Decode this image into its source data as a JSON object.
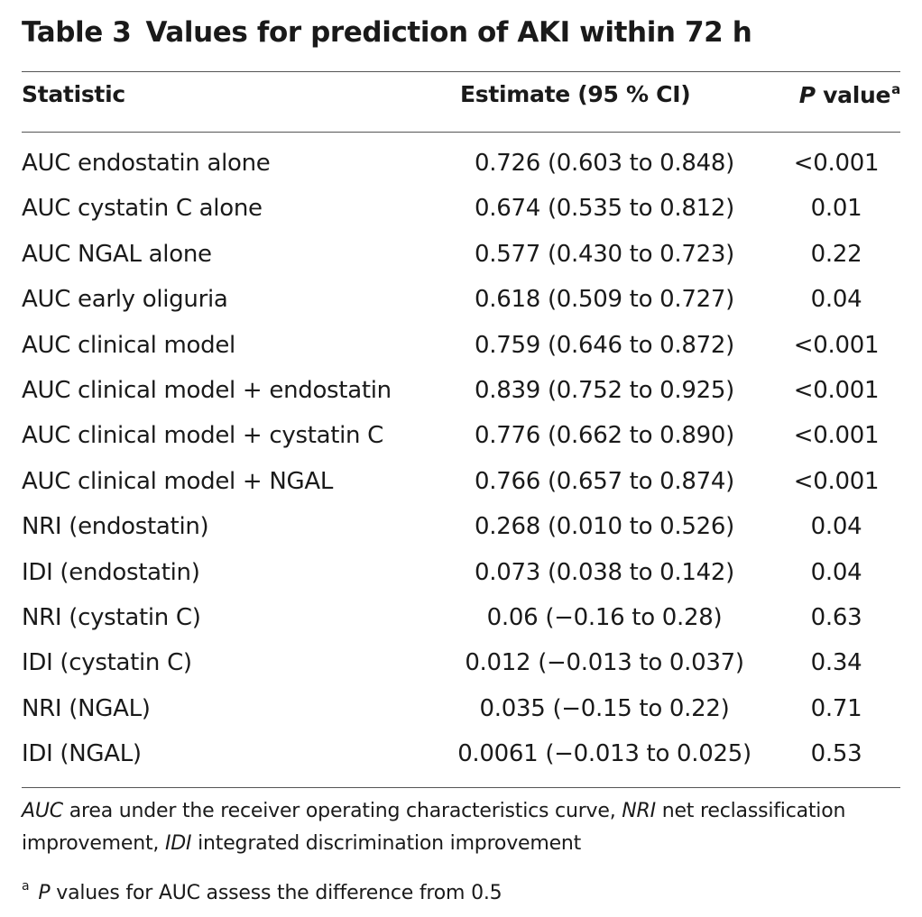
{
  "title": {
    "label": "Table 3",
    "text": "Values for prediction of AKI within 72 h"
  },
  "columns": {
    "statistic": "Statistic",
    "estimate": "Estimate (95 % CI)",
    "p_italic": "P",
    "p_rest": " value",
    "p_sup": "a"
  },
  "rows": [
    {
      "statistic": "AUC endostatin alone",
      "estimate": "0.726 (0.603 to 0.848)",
      "p": "<0.001"
    },
    {
      "statistic": "AUC cystatin C alone",
      "estimate": "0.674 (0.535 to 0.812)",
      "p": "0.01"
    },
    {
      "statistic": "AUC NGAL alone",
      "estimate": "0.577 (0.430 to 0.723)",
      "p": "0.22"
    },
    {
      "statistic": "AUC early oliguria",
      "estimate": "0.618 (0.509 to 0.727)",
      "p": "0.04"
    },
    {
      "statistic": "AUC clinical model",
      "estimate": "0.759 (0.646 to 0.872)",
      "p": "<0.001"
    },
    {
      "statistic": "AUC clinical model + endostatin",
      "estimate": "0.839 (0.752 to 0.925)",
      "p": "<0.001"
    },
    {
      "statistic": "AUC clinical model + cystatin C",
      "estimate": "0.776 (0.662 to 0.890)",
      "p": "<0.001"
    },
    {
      "statistic": "AUC clinical model + NGAL",
      "estimate": "0.766 (0.657 to 0.874)",
      "p": "<0.001"
    },
    {
      "statistic": "NRI (endostatin)",
      "estimate": "0.268 (0.010 to 0.526)",
      "p": "0.04"
    },
    {
      "statistic": "IDI (endostatin)",
      "estimate": "0.073 (0.038 to 0.142)",
      "p": "0.04"
    },
    {
      "statistic": "NRI (cystatin C)",
      "estimate": "0.06 (−0.16 to 0.28)",
      "p": "0.63"
    },
    {
      "statistic": "IDI (cystatin C)",
      "estimate": "0.012 (−0.013 to 0.037)",
      "p": "0.34"
    },
    {
      "statistic": "NRI (NGAL)",
      "estimate": "0.035 (−0.15 to 0.22)",
      "p": "0.71"
    },
    {
      "statistic": "IDI (NGAL)",
      "estimate": "0.0061 (−0.013 to 0.025)",
      "p": "0.53"
    }
  ],
  "footnotes": {
    "abbrev": {
      "auc_term": "AUC",
      "auc_def": " area under the receiver operating characteristics curve, ",
      "nri_term": "NRI",
      "nri_def": " net reclassification improvement, ",
      "idi_term": "IDI",
      "idi_def": " integrated discrimination improvement"
    },
    "note_a": {
      "marker": "a",
      "p_italic": "P",
      "text": " values for AUC assess the difference from 0.5"
    }
  }
}
